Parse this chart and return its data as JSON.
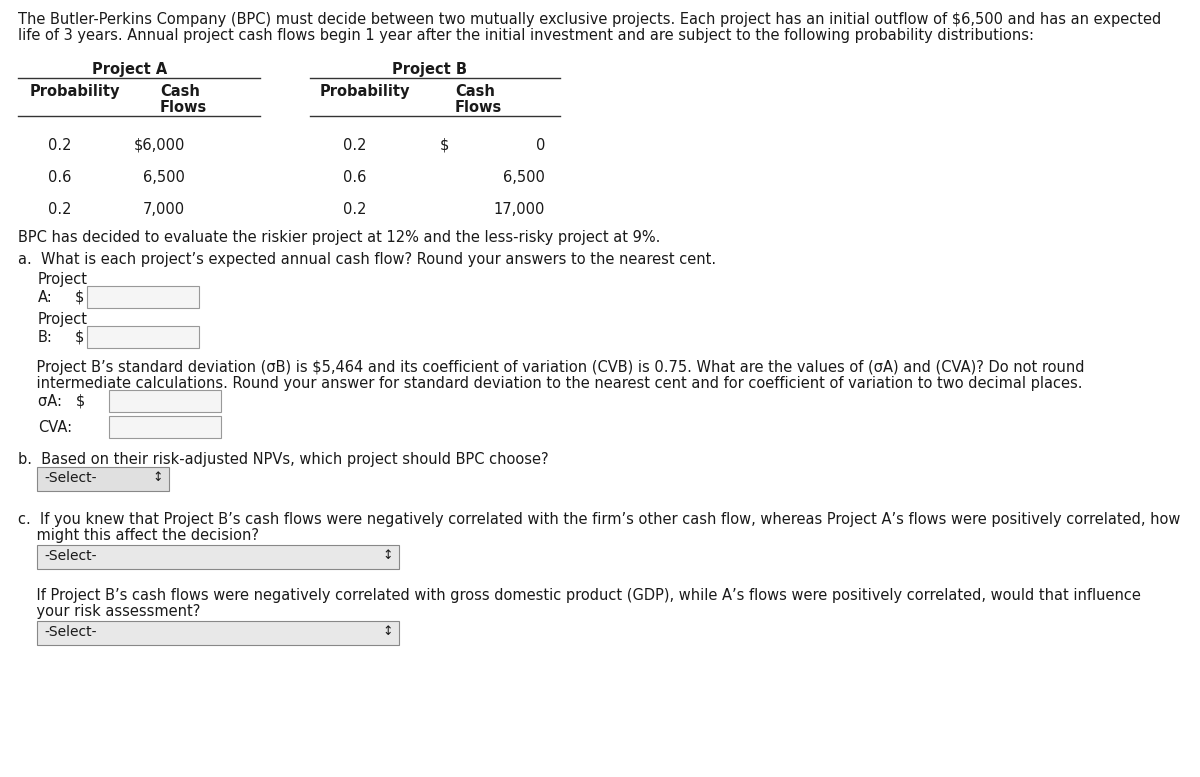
{
  "bg_color": "#ffffff",
  "text_color": "#1a1a1a",
  "intro_line1": "The Butler-Perkins Company (BPC) must decide between two mutually exclusive projects. Each project has an initial outflow of $6,500 and has an expected",
  "intro_line2": "life of 3 years. Annual project cash flows begin 1 year after the initial investment and are subject to the following probability distributions:",
  "proj_a_header": "Project A",
  "proj_b_header": "Project B",
  "table_data": [
    [
      "0.2",
      "$6,000",
      "0.2",
      "$",
      "0"
    ],
    [
      "0.6",
      "6,500",
      "0.6",
      "",
      "6,500"
    ],
    [
      "0.2",
      "7,000",
      "0.2",
      "",
      "17,000"
    ]
  ],
  "bpc_text": "BPC has decided to evaluate the riskier project at 12% and the less-risky project at 9%.",
  "q_a_text": "a.  What is each project’s expected annual cash flow? Round your answers to the nearest cent.",
  "std_dev_text_l1": "    Project B’s standard deviation (σB) is $5,464 and its coefficient of variation (CVB) is 0.75. What are the values of (σA) and (CVA)? Do not round",
  "std_dev_text_l2": "    intermediate calculations. Round your answer for standard deviation to the nearest cent and for coefficient of variation to two decimal places.",
  "sigma_a_label": "σA:   $",
  "cva_label": "CVA:",
  "q_b_text": "b.  Based on their risk-adjusted NPVs, which project should BPC choose?",
  "select_text": "-Select-",
  "q_c_line1": "c.  If you knew that Project B’s cash flows were negatively correlated with the firm’s other cash flow, whereas Project A’s flows were positively correlated, how",
  "q_c_line2": "    might this affect the decision?",
  "gdp_line1": "    If Project B’s cash flows were negatively correlated with gross domestic product (GDP), while A’s flows were positively correlated, would that influence",
  "gdp_line2": "    your risk assessment?"
}
